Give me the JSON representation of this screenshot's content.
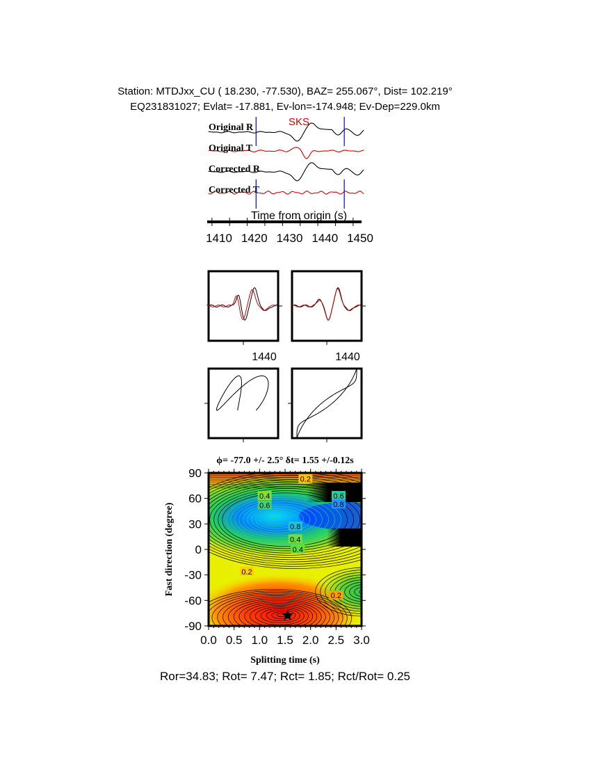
{
  "header": {
    "line1": "Station: MTDJxx_CU (  18.230,  -77.530), BAZ=  255.067°, Dist=  102.219°",
    "line2": "EQ231831027; Evlat= -17.881, Ev-lon=-174.948; Ev-Dep=229.0km"
  },
  "chart_data": [
    {
      "type": "line",
      "phase_label": "SKS",
      "trace_labels": [
        "Original R",
        "Original T",
        "Corrected R",
        "Corrected T"
      ],
      "trace_colors": [
        "#000000",
        "#cc0000",
        "#000000",
        "#cc0000"
      ],
      "xlabel": "Time from origin (s)",
      "xlim": [
        1406,
        1451
      ],
      "xticks": [
        "1410",
        "1420",
        "1430",
        "1440",
        "1450"
      ],
      "window_markers_s": [
        1420.5,
        1445.5
      ],
      "marker_color": "#0000cc"
    },
    {
      "type": "line",
      "panels": [
        {
          "xtick": "1440"
        },
        {
          "xtick": "1440"
        }
      ]
    },
    {
      "type": "scatter",
      "description_panels": 2
    },
    {
      "type": "heatmap",
      "title": "ϕ= -77.0 +/- 2.5° δt= 1.55 +/-0.12s",
      "xlabel": "Splitting time (s)",
      "ylabel": "Fast direction (degree)",
      "xlim": [
        0,
        3
      ],
      "ylim": [
        -90,
        90
      ],
      "xticks": [
        "0.0",
        "0.5",
        "1.0",
        "1.5",
        "2.0",
        "2.5",
        "3.0"
      ],
      "yticks": [
        "90",
        "60",
        "30",
        "0",
        "-30",
        "-60",
        "-90"
      ],
      "contour_labels": [
        "0.2",
        "0.4",
        "0.6",
        "0.8",
        "0.4",
        "0.6",
        "0.8",
        "0.4",
        "0.2",
        "0.2"
      ],
      "best_fit": {
        "dt": 1.55,
        "phi": -77.0
      }
    }
  ],
  "footer": "Ror=34.83; Rot= 7.47; Rct= 1.85; Rct/Rot= 0.25"
}
